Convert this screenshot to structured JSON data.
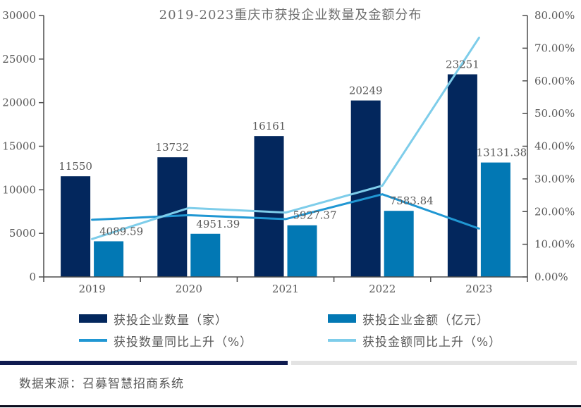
{
  "title": "2019-2023重庆市获投企业数量及金额分布",
  "source": "数据来源：召募智慧招商系统",
  "colors": {
    "navy": "#03275d",
    "blue": "#0278b4",
    "cyan_line": "#2097d3",
    "light_line": "#7ecdea",
    "label_gray": "#595959",
    "title_gray": "#6e6e6e",
    "axis": "#4d4d4d",
    "divider_navy": "#0f1b50",
    "divider_gray": "#e3e3e3",
    "bottom_rule": "#0d0d1f"
  },
  "chart_data": {
    "type": "bar+line combo",
    "title": "2019-2023重庆市获投企业数量及金额分布",
    "categories": [
      "2019",
      "2020",
      "2021",
      "2022",
      "2023"
    ],
    "series": [
      {
        "name": "获投企业数量（家）",
        "type": "bar",
        "axis": "left",
        "color_key": "navy",
        "values": [
          11550,
          13732,
          16161,
          20249,
          23251
        ],
        "labels": [
          "11550",
          "13732",
          "16161",
          "20249",
          "23251"
        ]
      },
      {
        "name": "获投企业金额（亿元）",
        "type": "bar",
        "axis": "left",
        "color_key": "blue",
        "values": [
          4089.59,
          4951.39,
          5927.37,
          7583.84,
          13131.38
        ],
        "labels": [
          "4089.59",
          "4951.39",
          "5927.37",
          "7583.84",
          "13131.38"
        ]
      },
      {
        "name": "获投数量同比上升（%）",
        "type": "line",
        "axis": "right",
        "color_key": "cyan_line",
        "values": [
          17.5,
          18.9,
          17.7,
          25.3,
          14.8
        ]
      },
      {
        "name": "获投金额同比上升（%）",
        "type": "line",
        "axis": "right",
        "color_key": "light_line",
        "values": [
          11.6,
          21.1,
          19.7,
          27.9,
          73.2
        ]
      }
    ],
    "left_axis": {
      "min": 0,
      "max": 30000,
      "step": 5000,
      "ticks": [
        "0",
        "5000",
        "10000",
        "15000",
        "20000",
        "25000",
        "30000"
      ]
    },
    "right_axis": {
      "min": 0,
      "max": 80,
      "step": 10,
      "ticks": [
        "0.00%",
        "10.00%",
        "20.00%",
        "30.00%",
        "40.00%",
        "50.00%",
        "60.00%",
        "70.00%",
        "80.00%"
      ]
    },
    "grid": false,
    "legend_position": "bottom"
  }
}
